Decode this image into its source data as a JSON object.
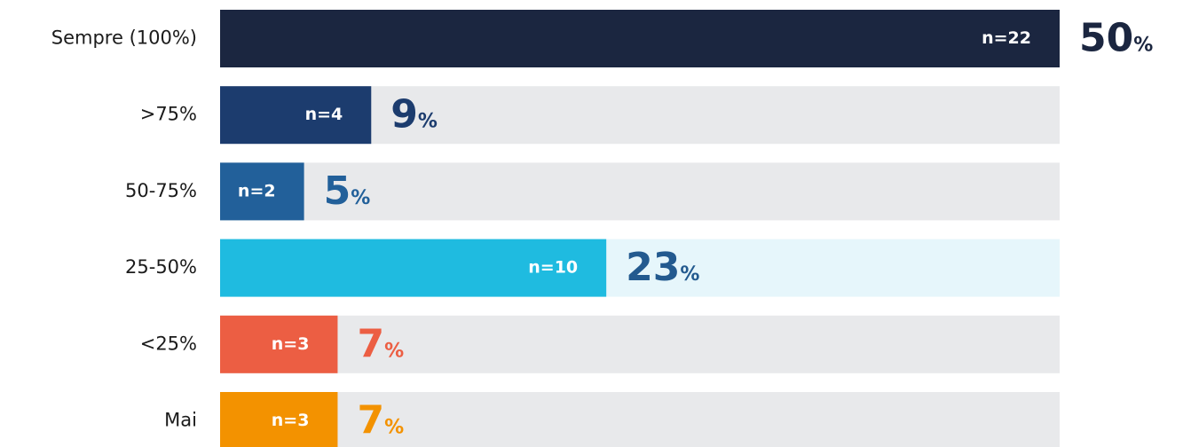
{
  "chart_data": {
    "type": "barh",
    "categories": [
      "Sempre (100%)",
      ">75%",
      "50-75%",
      "25-50%",
      "<25%",
      "Mai"
    ],
    "values": [
      50,
      9,
      5,
      23,
      7,
      7
    ],
    "value_labels": [
      "50%",
      "9%",
      "5%",
      "23%",
      "7%",
      "7%"
    ],
    "n_labels": [
      "n=22",
      "n=4",
      "n=2",
      "n=10",
      "n=3",
      "n=3"
    ],
    "colors": [
      "#1b2640",
      "#1c3c6e",
      "#22609a",
      "#1fbbe0",
      "#ec5e43",
      "#f39200"
    ],
    "label_colors": [
      "#1b2640",
      "#1c3c6e",
      "#22609a",
      "#235a8f",
      "#ec5e43",
      "#f39200"
    ],
    "track_colors": [
      "#e8e9eb",
      "#e8e9eb",
      "#e8e9eb",
      "#e6f6fb",
      "#e8e9eb",
      "#e8e9eb"
    ],
    "xlim": [
      0,
      50
    ]
  }
}
